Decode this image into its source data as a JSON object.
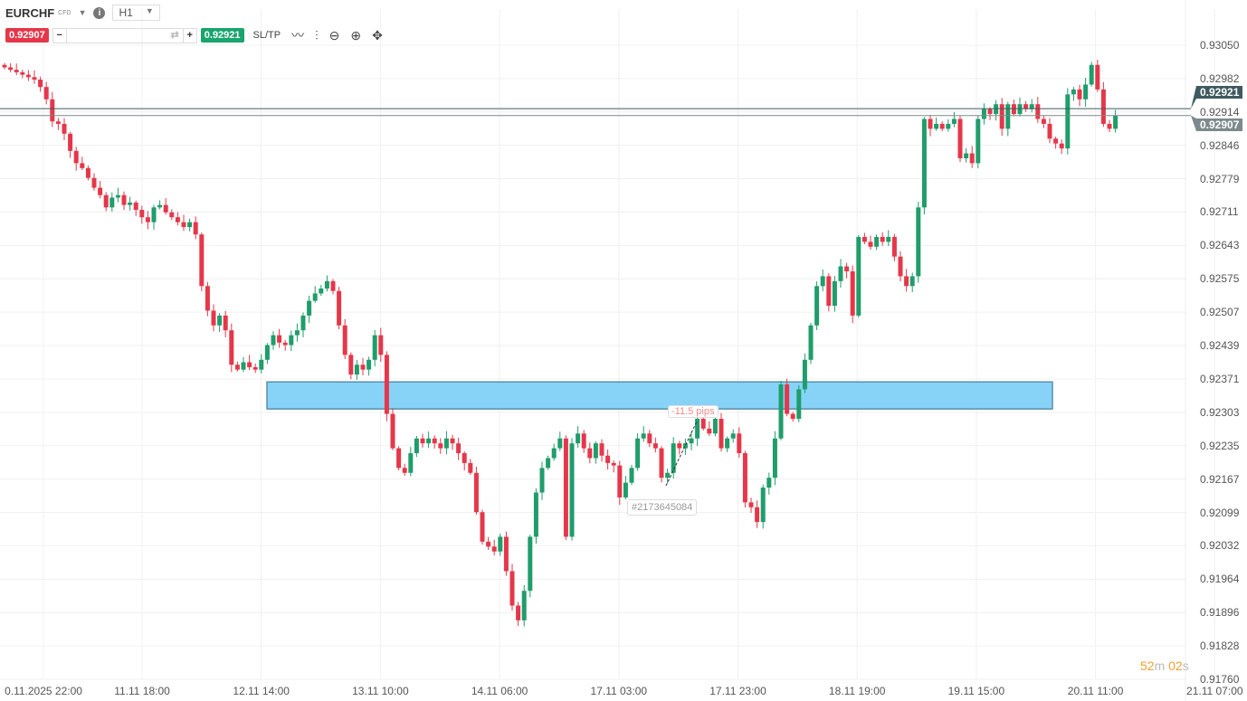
{
  "header": {
    "symbol": "EURCHF",
    "type": "CFD",
    "timeframe": "H1",
    "sell_price": "0.92907",
    "buy_price": "0.92921",
    "quantity": "",
    "sltp_label": "SL/TP",
    "icons": [
      "chevron-down-icon",
      "info-icon",
      "line-chart-icon",
      "indicators-icon",
      "zoom-out-icon",
      "zoom-in-icon",
      "move-icon"
    ]
  },
  "colors": {
    "bull": "#1f9d6b",
    "bear": "#e5374a",
    "zone": "#87d3f8",
    "ask_line": "#3e5a5f",
    "bid_line": "#7d8a8c"
  },
  "chart_data": {
    "type": "candlestick",
    "ylim": [
      0.9176,
      0.9305
    ],
    "y_ticks": [
      "0.93050",
      "0.92982",
      "0.92914",
      "0.92846",
      "0.92779",
      "0.92711",
      "0.92643",
      "0.92575",
      "0.92507",
      "0.92439",
      "0.92371",
      "0.92303",
      "0.92235",
      "0.92167",
      "0.92099",
      "0.92032",
      "0.91964",
      "0.91896",
      "0.91828",
      "0.91760"
    ],
    "x_ticks": [
      "0.11.2025 22:00",
      "11.11 18:00",
      "12.11 14:00",
      "13.11 10:00",
      "14.11 06:00",
      "17.11 03:00",
      "17.11 23:00",
      "18.11 19:00",
      "19.11 15:00",
      "20.11 11:00",
      "21.11 07:00"
    ],
    "closes": [
      0.93005,
      0.93,
      0.92995,
      0.9299,
      0.92985,
      0.9298,
      0.92965,
      0.9294,
      0.92895,
      0.9289,
      0.9287,
      0.92835,
      0.9281,
      0.928,
      0.9278,
      0.9276,
      0.92745,
      0.9272,
      0.9274,
      0.92745,
      0.92725,
      0.9273,
      0.92715,
      0.927,
      0.9269,
      0.9272,
      0.92725,
      0.9271,
      0.927,
      0.9269,
      0.9268,
      0.9269,
      0.92665,
      0.9256,
      0.9251,
      0.9248,
      0.925,
      0.9247,
      0.924,
      0.9239,
      0.92405,
      0.92395,
      0.9239,
      0.9241,
      0.9244,
      0.9246,
      0.92445,
      0.9244,
      0.9246,
      0.9247,
      0.925,
      0.9253,
      0.92545,
      0.92555,
      0.9257,
      0.9255,
      0.9248,
      0.9242,
      0.9238,
      0.924,
      0.9239,
      0.9241,
      0.9246,
      0.9242,
      0.923,
      0.9223,
      0.9219,
      0.9218,
      0.9222,
      0.9225,
      0.9224,
      0.9225,
      0.9224,
      0.9223,
      0.9225,
      0.9224,
      0.9222,
      0.922,
      0.9218,
      0.921,
      0.9204,
      0.9203,
      0.9202,
      0.9205,
      0.9198,
      0.9191,
      0.9188,
      0.9194,
      0.9205,
      0.9214,
      0.9219,
      0.9221,
      0.9223,
      0.9225,
      0.9205,
      0.9224,
      0.9226,
      0.9223,
      0.9221,
      0.9224,
      0.92215,
      0.922,
      0.92195,
      0.9213,
      0.9216,
      0.9219,
      0.9225,
      0.9226,
      0.9224,
      0.9223,
      0.9217,
      0.9218,
      0.9224,
      0.9223,
      0.9224,
      0.9225,
      0.9229,
      0.9227,
      0.9226,
      0.9229,
      0.9223,
      0.9225,
      0.9226,
      0.9222,
      0.9212,
      0.9211,
      0.9208,
      0.9215,
      0.9217,
      0.9225,
      0.9236,
      0.923,
      0.9229,
      0.9235,
      0.9241,
      0.9248,
      0.9256,
      0.9258,
      0.9252,
      0.9257,
      0.926,
      0.9259,
      0.925,
      0.9266,
      0.9265,
      0.9264,
      0.9266,
      0.9265,
      0.9266,
      0.9262,
      0.9258,
      0.9256,
      0.9258,
      0.9272,
      0.929,
      0.9288,
      0.9289,
      0.9288,
      0.9289,
      0.929,
      0.9282,
      0.9283,
      0.9281,
      0.929,
      0.9292,
      0.9291,
      0.9293,
      0.9288,
      0.9293,
      0.9291,
      0.9293,
      0.9292,
      0.9293,
      0.929,
      0.9289,
      0.9286,
      0.9285,
      0.9284,
      0.9295,
      0.9296,
      0.9294,
      0.9297,
      0.9301,
      0.9296,
      0.9289,
      0.9288,
      0.92907
    ],
    "zone": {
      "from": 0.9231,
      "to": 0.92365
    },
    "ask": 0.92921,
    "bid": 0.92907
  },
  "trade": {
    "pips_label": "-11.5 pips",
    "ticket": "#2173645084"
  },
  "timer": {
    "minutes": "52",
    "m": "m ",
    "seconds": "02",
    "s": "s"
  }
}
